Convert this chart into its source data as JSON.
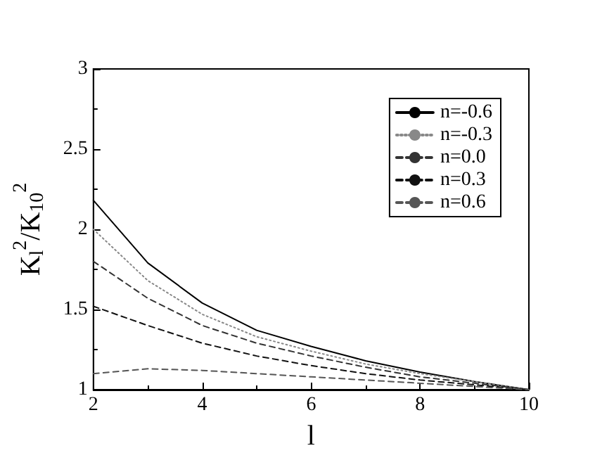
{
  "chart_data": {
    "type": "line",
    "xlabel": "l",
    "ylabel": "K$_{l}$$^{2}$/K$_{10}$$^{2}$",
    "x": [
      2,
      3,
      4,
      5,
      6,
      7,
      8,
      9,
      10
    ],
    "series": [
      {
        "name": "n=-0.6",
        "color": "#000000",
        "line_style": "solid",
        "values": [
          2.18,
          1.79,
          1.54,
          1.37,
          1.27,
          1.18,
          1.11,
          1.05,
          1.0
        ]
      },
      {
        "name": "n=-0.3",
        "color": "#888888",
        "line_style": "dotted",
        "values": [
          2.0,
          1.68,
          1.47,
          1.33,
          1.24,
          1.16,
          1.1,
          1.05,
          1.0
        ]
      },
      {
        "name": "n=0.0",
        "color": "#333333",
        "line_style": "dashed",
        "values": [
          1.8,
          1.57,
          1.4,
          1.29,
          1.21,
          1.14,
          1.08,
          1.04,
          1.0
        ]
      },
      {
        "name": "n=0.3",
        "color": "#111111",
        "line_style": "dashed",
        "values": [
          1.52,
          1.4,
          1.29,
          1.21,
          1.15,
          1.1,
          1.06,
          1.03,
          1.0
        ]
      },
      {
        "name": "n=0.6",
        "color": "#555555",
        "line_style": "dashed",
        "values": [
          1.1,
          1.13,
          1.12,
          1.1,
          1.08,
          1.06,
          1.04,
          1.02,
          1.0
        ]
      }
    ],
    "xlim": [
      2,
      10
    ],
    "xticks": [
      2,
      4,
      6,
      8,
      10
    ],
    "ylim": [
      1,
      3
    ],
    "yticks": [
      1,
      1.5,
      2,
      2.5,
      3
    ],
    "grid": false,
    "legend": "top right",
    "marker": "none"
  }
}
